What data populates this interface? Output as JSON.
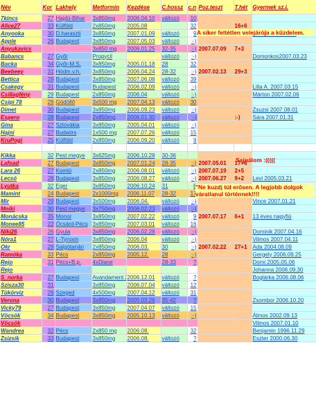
{
  "headers": {
    "nev": "Név",
    "kor": "Kor",
    "lakhely": "Lakhely",
    "metformin": "Metformin",
    "kezdese": "Kezdése",
    "chossz": "C.hossz",
    "cn": "c.n",
    "pozteszt": "Poz.teszt",
    "thet": "T.hét",
    "gyermek": "Gyermek sz.i."
  },
  "colors": {
    "header_bg": "#ffff99",
    "name_bg": "#ffff99",
    "kor_bg": "#cc99ff",
    "lakhely_bg": "#99ccff",
    "metformin_bg": "#ccffcc",
    "kezdese_bg": "#ffff99",
    "chossz_bg": "#ccffcc",
    "cn_bg": "#ffffff",
    "poz_bg": "#ffcc99",
    "thet_bg": "#ffcc99",
    "gyermek_bg": "#ccffff",
    "pink": "#ff99cc",
    "purple": "#9999ff",
    "green": "#ccffcc",
    "orange": "#ffcc66",
    "text_blue": "#1a4fb5",
    "text_red": "#cc0000"
  },
  "annotations": {
    "note1": "A siker feltétlen velejárója a küzdelem.",
    "note2": "Sajnálom :(((((",
    "note3": "\"Ne kuzdj túl erősen. A legjobb dolgok váratlanul történnek!!!!"
  },
  "rows": [
    {
      "nev": "7kincs",
      "kor": "27",
      "lakhely": "Hajdú-Bihar",
      "met": "3x850mg",
      "kez": "2006.04.10",
      "ch": "változó",
      "cn": "10",
      "poz": "",
      "th": "",
      "gy": ""
    },
    {
      "nev": "Alice27",
      "kor": "33",
      "lakhely": "Külföld",
      "met": "2x850mg",
      "kez": "2005.08",
      "ch": "",
      "cn": "32",
      "poz": "",
      "th": "16+6",
      "gy": ""
    },
    {
      "nev": "Anyooka",
      "kor": "30",
      "lakhely": "D.haraszti",
      "met": "3x850mg",
      "kez": "2007.01.09",
      "ch": "változó",
      "cn": "9",
      "poz": "",
      "th": "",
      "gy": "Dorka    2004.11.08"
    },
    {
      "nev": "Apple",
      "kor": "26",
      "lakhely": "Budapest",
      "met": "3x850mg",
      "kez": "2007.05.03",
      "ch": "változó",
      "cn": ":-)",
      "poz": "",
      "th": "",
      "gy": ""
    },
    {
      "nev": "Anyukavics",
      "kor": "",
      "lakhely": "",
      "met": "3x850 mg",
      "kez": "2006.01.25",
      "ch": "32-35",
      "cn": ":-)",
      "poz": "2007.07.09",
      "th": "7+3",
      "gy": ""
    },
    {
      "nev": "Babancs",
      "kor": "27",
      "lakhely": "Győr",
      "met": "Propycil",
      "kez": "",
      "ch": "változó",
      "cn": ":-)",
      "poz": "",
      "th": "",
      "gy": "Domonkos2007.03.23"
    },
    {
      "nev": "Backa",
      "kor": "34",
      "lakhely": "Győr-M.S.",
      "met": "3x850mg",
      "kez": "2005.01.18",
      "ch": "28",
      "cn": "32",
      "poz": "",
      "th": "",
      "gy": ""
    },
    {
      "nev": "Beebeey",
      "kor": "31",
      "lakhely": "Hódm.v.h.",
      "met": "3x850mg",
      "kez": "2006.04.24",
      "ch": "28-32",
      "cn": ":-)",
      "poz": "2007.02.13",
      "th": "29+3",
      "gy": ""
    },
    {
      "nev": "Bettica",
      "kor": "29",
      "lakhely": "Budapest",
      "met": "3x850mg",
      "kez": "2007.06.08",
      "ch": "változó",
      "cn": "39",
      "poz": "",
      "th": "",
      "gy": ""
    },
    {
      "nev": "Csakegy",
      "kor": "31",
      "lakhely": "Budapest",
      "met": "Budapest",
      "kez": "2006.02.09",
      "ch": "változó",
      "cn": ":-)",
      "poz": "",
      "th": "",
      "gy": "Lilla A.   2007.03.15"
    },
    {
      "nev": "Csillagfény",
      "kor": "29",
      "lakhely": "Budapest",
      "met": "2x850mg",
      "kez": "2006.04",
      "ch": "változó",
      "cn": ":-)",
      "poz": "",
      "th": "",
      "gy": "Márton    2007.02.06"
    },
    {
      "nev": "Csipi 78",
      "kor": "29",
      "lakhely": "Gödöllő",
      "met": "3x500 mg",
      "kez": "2007.04.13",
      "ch": "változó",
      "cn": "30",
      "poz": "",
      "th": "",
      "gy": ""
    },
    {
      "nev": "Dimet",
      "kor": "30",
      "lakhely": "Budapest",
      "met": "3x850mg",
      "kez": "2006.09.23",
      "ch": "változó",
      "cn": ":-)",
      "poz": "",
      "th": "",
      "gy": "Zsuzsi 2007.08.01"
    },
    {
      "nev": "Espero",
      "kor": "28",
      "lakhely": "Budapest",
      "met": "2x850mg",
      "kez": "2006.01.30",
      "ch": "változó",
      "cn": ":-)",
      "poz": "",
      "th": ":-)",
      "gy": "Sára     2007.01.31"
    },
    {
      "nev": "Gina",
      "kor": "27",
      "lakhely": "Szlovákia",
      "met": "3x850mg",
      "kez": "2005.04.01",
      "ch": "változó",
      "cn": ":-)",
      "poz": "",
      "th": "",
      "gy": ""
    },
    {
      "nev": "Hajni",
      "kor": "27",
      "lakhely": "Budaörs",
      "met": "1x500 mg",
      "kez": "2007.07.26",
      "ch": "változó",
      "cn": "15",
      "poz": "",
      "th": "",
      "gy": ""
    },
    {
      "nev": "KruPogi",
      "kor": "25",
      "lakhely": "Külföld",
      "met": "2x850mg",
      "kez": "2006.09.20",
      "ch": "változó",
      "cn": "9",
      "poz": "",
      "th": "",
      "gy": ""
    },
    {
      "nev": "",
      "kor": "",
      "lakhely": "",
      "met": "",
      "kez": "",
      "ch": "",
      "cn": "",
      "poz": "",
      "th": "",
      "gy": ""
    },
    {
      "nev": "Kikka",
      "kor": "32",
      "lakhely": "Pest megye",
      "met": "3x625mg",
      "kez": "2006.10.28",
      "ch": "30-36",
      "cn": "",
      "poz": "",
      "th": "",
      "gy": ""
    },
    {
      "nev": "Lafoad",
      "kor": "27",
      "lakhely": "Budapest",
      "met": "3x850mg",
      "kez": "2007.01.24",
      "ch": "28-35",
      "cn": ":-)",
      "poz": "2007.05.01",
      "th": "17+6",
      "gy": ""
    },
    {
      "nev": "Lara 26",
      "kor": "27",
      "lakhely": "Komló",
      "met": "2x850mg",
      "kez": "2006.08.01",
      "ch": "változó",
      "cn": ":-)",
      "poz": "2007.07.19",
      "th": "2+5",
      "gy": ""
    },
    {
      "nev": "Lecsó",
      "kor": "28",
      "lakhely": "Budapest",
      "met": "3x850mg",
      "kez": "2006.08.27",
      "ch": "változó",
      "cn": ":-)",
      "poz": "2007.06.27",
      "th": "9+2",
      "gy": "Levi 2005.03.21"
    },
    {
      "nev": "Lyutka",
      "kor": "32",
      "lakhely": "Eger",
      "met": "3x850mg",
      "kez": "2006.10.24",
      "ch": "31",
      "cn": "8",
      "poz": "",
      "th": "",
      "gy": ""
    },
    {
      "nev": "Mamint",
      "kor": "24",
      "lakhely": "Budapest",
      "met": "2x1000mg",
      "kez": "2006.11.07",
      "ch": "28-32",
      "cn": "17",
      "poz": "",
      "th": "",
      "gy": ""
    },
    {
      "nev": "Mir",
      "kor": "29",
      "lakhely": "Budapest",
      "met": "3x500mg",
      "kez": "2006.04.",
      "ch": "változó",
      "cn": ":-)",
      "poz": "",
      "th": "",
      "gy": "Vince     2007.01.21"
    },
    {
      "nev": "Mniki",
      "kor": "30",
      "lakhely": "Pest megye",
      "met": "3x750mg",
      "kez": "2006.02.23",
      "ch": "változó",
      "cn": ":-)",
      "poz": "",
      "th": "",
      "gy": ""
    },
    {
      "nev": "Monácska",
      "kor": "35",
      "lakhely": "Monor",
      "met": "3x850mg",
      "kez": "2007.02.22",
      "ch": "változó",
      "cn": "9",
      "poz": "2007.07.17",
      "th": "6+1",
      "gy": "13 éves nagyfiú"
    },
    {
      "nev": "Monee85",
      "kor": "22",
      "lakhely": "Ócsárd-Pécs",
      "met": "3x850mg",
      "kez": "2007.03.01",
      "ch": "változó",
      "cn": "16",
      "poz": "",
      "th": "",
      "gy": ""
    },
    {
      "nev": "Niki26",
      "kor": "26",
      "lakhely": "Gyula",
      "met": "3x850mg",
      "kez": "2006.02.28",
      "ch": "változó",
      "cn": ":-)",
      "poz": "",
      "th": "",
      "gy": "Dominik   2007.04.16"
    },
    {
      "nev": "Nóra1",
      "kor": "27",
      "lakhely": "L-Tyroxin",
      "met": "3x850mg",
      "kez": "2006.04",
      "ch": "változó",
      "cn": ":-)",
      "poz": "",
      "th": "",
      "gy": "Vilmos   2007.04.11"
    },
    {
      "nev": "Okr",
      "kor": "29",
      "lakhely": "Salgótarján",
      "met": "2x850mg",
      "kez": "2006.03.",
      "ch": "30",
      "cn": ":-)",
      "poz": "2007.02.22",
      "th": "27+1",
      "gy": "Ada    2004.08.09"
    },
    {
      "nev": "Ramóka",
      "kor": "33",
      "lakhely": "Pécs",
      "met": "2x850mg",
      "kez": "2005.12.",
      "ch": "28",
      "cn": ":-)",
      "poz": "",
      "th": "",
      "gy": "Gergely  2006.09.25"
    },
    {
      "nev": "Rejo",
      "kor": "31",
      "lakhely": "Pécs+B.p.",
      "met": "4xDiane",
      "kez": "",
      "ch": "28-33",
      "cn": "?",
      "poz": "",
      "th": "",
      "gy": "Domi     2005.05.06"
    },
    {
      "nev": "Rejo",
      "kor": "",
      "lakhely": "",
      "met": "",
      "kez": "",
      "ch": "",
      "cn": "",
      "poz": "",
      "th": "",
      "gy": "Johanna  2006.09.30"
    },
    {
      "nev": "S_norka",
      "kor": "27",
      "lakhely": "Budapest",
      "met": "Avandament 2000 mg",
      "kez": "2006.12.01",
      "ch": "változó",
      "cn": "?",
      "poz": "",
      "th": "",
      "gy": "Boglárka 2006.08.06"
    },
    {
      "nev": "Szisza30",
      "kor": "31",
      "lakhely": "",
      "met": "3x850mg",
      "kez": "2006.07.04",
      "ch": "változó",
      "cn": "12",
      "poz": "",
      "th": "",
      "gy": ""
    },
    {
      "nev": "Tükörviz",
      "kor": "29",
      "lakhely": "Szeged",
      "met": "4x500mg",
      "kez": "2007.04.12",
      "ch": "változó",
      "cn": "31",
      "poz": "",
      "th": "",
      "gy": ""
    },
    {
      "nev": "Verona",
      "kor": "30",
      "lakhely": "Budapest",
      "met": "3x850mg",
      "kez": "2005.03.26",
      "ch": "35-42",
      "cn": "?",
      "poz": "",
      "th": "",
      "gy": "Zsombor  2006.10.20"
    },
    {
      "nev": "Vicky79",
      "kor": "27",
      "lakhely": "Budapest",
      "met": "3x850mg",
      "kez": "2007.04.07",
      "ch": "változó",
      "cn": "15",
      "poz": "",
      "th": "",
      "gy": ""
    },
    {
      "nev": "Vöcsök",
      "kor": "34",
      "lakhely": "Budapest",
      "met": "3x850mg",
      "kez": "2005.10.13",
      "ch": "változó",
      "cn": ":-)",
      "poz": "",
      "th": "",
      "gy": "Álmos    2002.09.13"
    },
    {
      "nev": "Vöcsök",
      "kor": "",
      "lakhely": "",
      "met": "",
      "kez": "",
      "ch": "",
      "cn": "",
      "poz": "",
      "th": "",
      "gy": "Vilmos   2007.01.10"
    },
    {
      "nev": "Wandrea",
      "kor": "32",
      "lakhely": "Pécs",
      "met": "2x850 mg",
      "kez": "2006.08.",
      "ch": "",
      "cn": "32",
      "poz": "",
      "th": "",
      "gy": "Benjamin 1996.11.29"
    },
    {
      "nev": "Zsizsik",
      "kor": "33",
      "lakhely": "Budapest",
      "met": "3x850mg",
      "kez": "2006.08.",
      "ch": "változó",
      "cn": "?",
      "poz": "",
      "th": "",
      "gy": "Eszter   2000.06.30"
    }
  ]
}
